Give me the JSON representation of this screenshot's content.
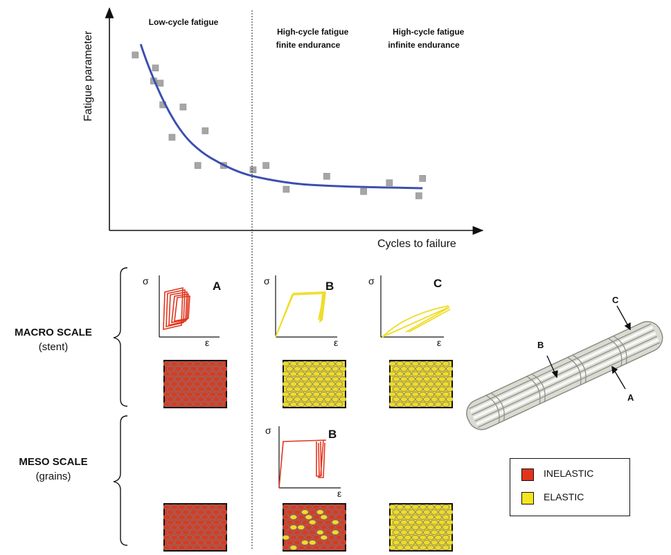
{
  "chart_data": {
    "type": "scatter",
    "xlabel": "Cycles to failure",
    "ylabel": "Fatigue parameter",
    "x_range": [
      0,
      100
    ],
    "y_range": [
      0,
      100
    ],
    "regions": [
      "Low-cycle fatigue",
      "High-cycle fatigue\nfinite endurance",
      "High-cycle fatigue\ninfinite endurance"
    ],
    "points": [
      {
        "x": 7,
        "y": 81
      },
      {
        "x": 12.5,
        "y": 75
      },
      {
        "x": 13.8,
        "y": 68
      },
      {
        "x": 12,
        "y": 69
      },
      {
        "x": 14.5,
        "y": 58
      },
      {
        "x": 20,
        "y": 57
      },
      {
        "x": 17,
        "y": 43
      },
      {
        "x": 26,
        "y": 46
      },
      {
        "x": 24,
        "y": 30
      },
      {
        "x": 31,
        "y": 30
      },
      {
        "x": 39,
        "y": 28
      },
      {
        "x": 42.5,
        "y": 30
      },
      {
        "x": 48,
        "y": 19
      },
      {
        "x": 59,
        "y": 25
      },
      {
        "x": 69,
        "y": 18
      },
      {
        "x": 76,
        "y": 22
      },
      {
        "x": 84,
        "y": 16
      },
      {
        "x": 85,
        "y": 24
      }
    ],
    "curve": {
      "x": [
        8.5,
        10,
        15,
        20,
        25,
        30,
        35,
        40,
        50,
        60,
        70,
        85
      ],
      "y": [
        86,
        78,
        58,
        44,
        36,
        31,
        27,
        24.5,
        21.5,
        20.5,
        20,
        19.5
      ]
    },
    "divider_x": 36,
    "curve_color": "#3b4faf",
    "point_color": "#a6a6a6"
  },
  "scales": {
    "macro": {
      "title": "MACRO SCALE",
      "subtitle": "(stent)"
    },
    "meso": {
      "title": "MESO SCALE",
      "subtitle": "(grains)"
    }
  },
  "panels": {
    "sigma": "σ",
    "epsilon": "ε",
    "macro_a": "A",
    "macro_b": "B",
    "macro_c": "C",
    "meso_b": "B"
  },
  "stent": {
    "label_a": "A",
    "label_b": "B",
    "label_c": "C"
  },
  "legend": {
    "inelastic": "INELASTIC",
    "elastic": "ELASTIC",
    "inelastic_color": "#e0341d",
    "elastic_color": "#f5e51f"
  },
  "colors": {
    "red": "#d83a22",
    "yellow": "#f0dc26",
    "grain_border": "#7a7a7a"
  }
}
